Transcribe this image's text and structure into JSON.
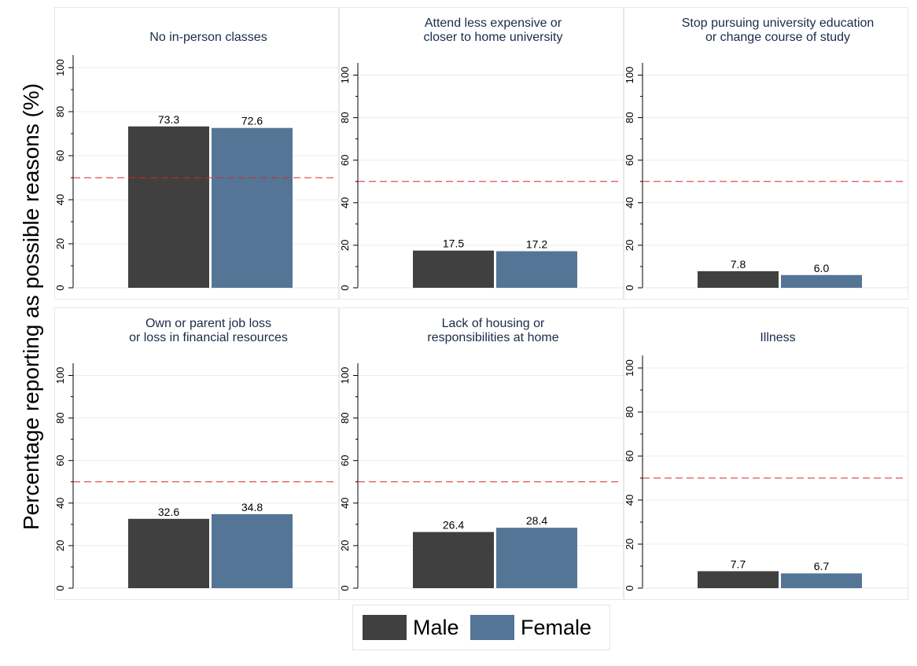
{
  "colors": {
    "male": "#404040",
    "female": "#547596",
    "reference_line": "#d62728",
    "grid": "#ececec",
    "panel_title": "#1a2b4a",
    "panel_border": "#e8e8e8"
  },
  "chart_data": {
    "type": "bar",
    "ylabel": "Percentage reporting as possible reasons (%)",
    "yticks": [
      0,
      20,
      40,
      60,
      80,
      100
    ],
    "ylim": [
      0,
      105
    ],
    "reference_line": 50,
    "grid": true,
    "legend_position": "bottom-center",
    "legend": [
      {
        "name": "Male",
        "color": "#404040"
      },
      {
        "name": "Female",
        "color": "#547596"
      }
    ],
    "panels": [
      {
        "title": [
          "No in-person classes"
        ],
        "series": [
          {
            "name": "Male",
            "value": 73.3
          },
          {
            "name": "Female",
            "value": 72.6
          }
        ]
      },
      {
        "title": [
          "Attend less expensive or",
          "closer to home university"
        ],
        "series": [
          {
            "name": "Male",
            "value": 17.5
          },
          {
            "name": "Female",
            "value": 17.2
          }
        ]
      },
      {
        "title": [
          "Stop pursuing university education",
          "or change course of study"
        ],
        "series": [
          {
            "name": "Male",
            "value": 7.8
          },
          {
            "name": "Female",
            "value": 6.0
          }
        ]
      },
      {
        "title": [
          "Own or parent job loss",
          "or loss in financial resources"
        ],
        "series": [
          {
            "name": "Male",
            "value": 32.6
          },
          {
            "name": "Female",
            "value": 34.8
          }
        ]
      },
      {
        "title": [
          "Lack of housing or",
          "responsibilities at home"
        ],
        "series": [
          {
            "name": "Male",
            "value": 26.4
          },
          {
            "name": "Female",
            "value": 28.4
          }
        ]
      },
      {
        "title": [
          "Illness"
        ],
        "series": [
          {
            "name": "Male",
            "value": 7.7
          },
          {
            "name": "Female",
            "value": 6.7
          }
        ]
      }
    ]
  }
}
